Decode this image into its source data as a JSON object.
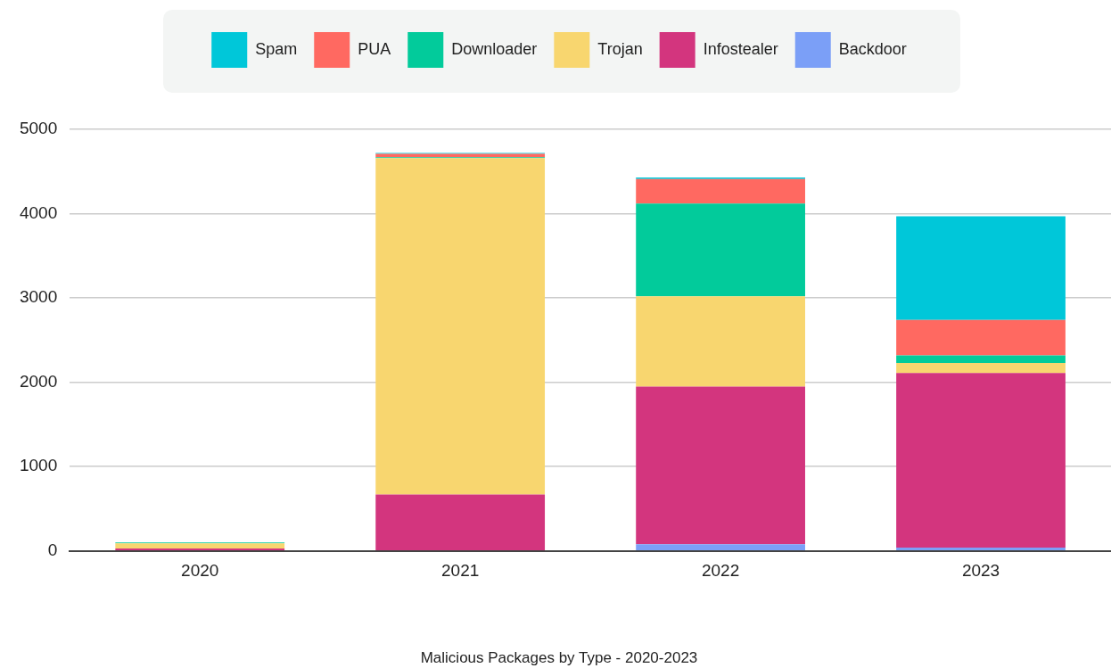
{
  "chart_data": {
    "type": "bar",
    "title": "Malicious Packages by Type - 2020-2023",
    "categories": [
      "2020",
      "2021",
      "2022",
      "2023"
    ],
    "stacked": true,
    "series": [
      {
        "name": "Backdoor",
        "color": "#7b9ff7",
        "values": [
          null,
          null,
          80,
          40
        ]
      },
      {
        "name": "Infostealer",
        "color": "#d3357e",
        "values": [
          30,
          670,
          1870,
          2070
        ]
      },
      {
        "name": "Trojan",
        "color": "#f8d66f",
        "values": [
          60,
          3990,
          1070,
          120
        ]
      },
      {
        "name": "Downloader",
        "color": "#02cb9b",
        "values": [
          10,
          10,
          1100,
          90
        ]
      },
      {
        "name": "PUA",
        "color": "#ff6961",
        "values": [
          null,
          40,
          290,
          420
        ]
      },
      {
        "name": "Spam",
        "color": "#00c7d9",
        "values": [
          null,
          10,
          20,
          1230
        ]
      }
    ],
    "ylim": [
      0,
      5000
    ],
    "yticks": [
      0,
      1000,
      2000,
      3000,
      4000,
      5000
    ],
    "grid": "y",
    "legend": "top"
  }
}
